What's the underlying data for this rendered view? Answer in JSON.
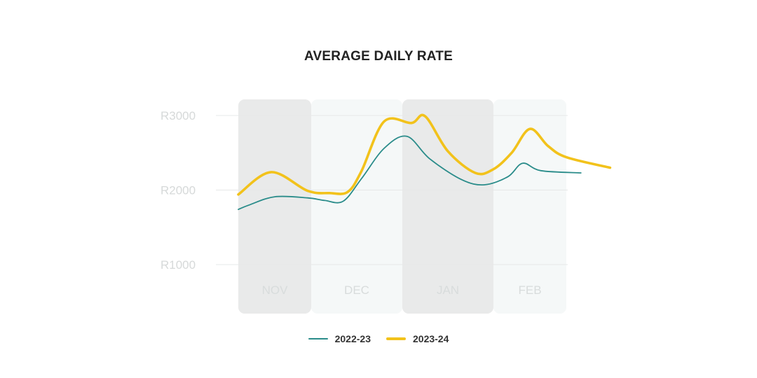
{
  "chart_data": {
    "type": "line",
    "title": "AVERAGE DAILY RATE",
    "y_ticks": [
      {
        "value": 3000,
        "label": "R3000"
      },
      {
        "value": 2000,
        "label": "R2000"
      },
      {
        "value": 1000,
        "label": "R1000"
      }
    ],
    "months": [
      "NOV",
      "DEC",
      "JAN",
      "FEB"
    ],
    "series": [
      {
        "name": "2022-23",
        "color": "#2a8c8a",
        "points": [
          [
            0.0,
            1740
          ],
          [
            0.15,
            1800
          ],
          [
            0.5,
            1910
          ],
          [
            0.95,
            1895
          ],
          [
            1.15,
            1860
          ],
          [
            1.35,
            1850
          ],
          [
            1.55,
            2150
          ],
          [
            1.8,
            2560
          ],
          [
            2.05,
            2720
          ],
          [
            2.3,
            2420
          ],
          [
            2.65,
            2140
          ],
          [
            2.9,
            2070
          ],
          [
            3.2,
            2180
          ],
          [
            3.4,
            2360
          ],
          [
            3.65,
            2260
          ],
          [
            4.2,
            2230
          ]
        ]
      },
      {
        "name": "2023-24",
        "color": "#f2c21b",
        "points": [
          [
            0.0,
            1940
          ],
          [
            0.45,
            2240
          ],
          [
            0.95,
            1990
          ],
          [
            1.2,
            1960
          ],
          [
            1.4,
            1975
          ],
          [
            1.55,
            2250
          ],
          [
            1.8,
            2920
          ],
          [
            2.1,
            2900
          ],
          [
            2.25,
            2990
          ],
          [
            2.5,
            2520
          ],
          [
            2.8,
            2230
          ],
          [
            3.0,
            2280
          ],
          [
            3.25,
            2500
          ],
          [
            3.5,
            2820
          ],
          [
            3.75,
            2590
          ],
          [
            4.0,
            2440
          ],
          [
            4.6,
            2300
          ]
        ]
      }
    ]
  }
}
